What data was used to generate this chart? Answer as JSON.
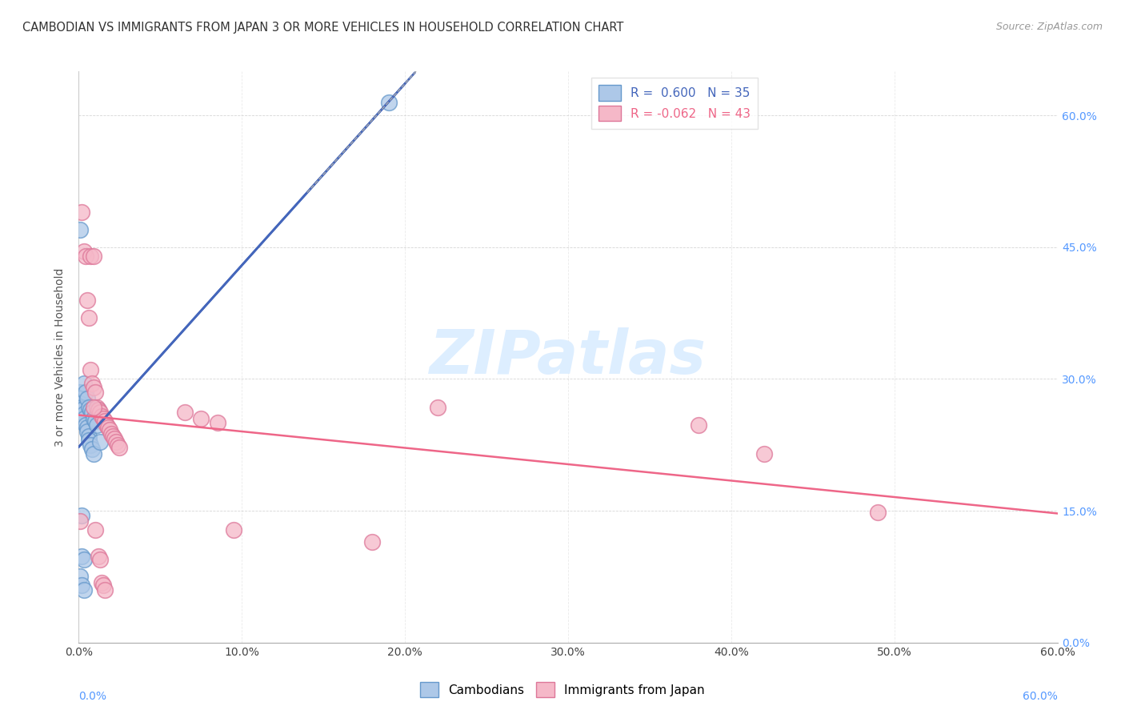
{
  "title": "CAMBODIAN VS IMMIGRANTS FROM JAPAN 3 OR MORE VEHICLES IN HOUSEHOLD CORRELATION CHART",
  "source": "Source: ZipAtlas.com",
  "ylabel": "3 or more Vehicles in Household",
  "x_min": 0.0,
  "x_max": 0.6,
  "y_min": 0.0,
  "y_max": 0.65,
  "cambodian_color": "#adc8e8",
  "cambodian_edge": "#6699cc",
  "japan_color": "#f5b8c8",
  "japan_edge": "#dd7799",
  "trendline_cambodian_color": "#4466bb",
  "trendline_japan_color": "#ee6688",
  "watermark_color": "#ddeeff",
  "right_tick_color": "#5599ff",
  "cambodian_x": [
    0.001,
    0.001,
    0.001,
    0.001,
    0.002,
    0.002,
    0.002,
    0.003,
    0.003,
    0.003,
    0.003,
    0.004,
    0.004,
    0.005,
    0.005,
    0.005,
    0.006,
    0.006,
    0.006,
    0.007,
    0.007,
    0.008,
    0.008,
    0.009,
    0.009,
    0.01,
    0.011,
    0.012,
    0.013,
    0.002,
    0.003,
    0.001,
    0.002,
    0.003,
    0.19
  ],
  "cambodian_y": [
    0.47,
    0.285,
    0.278,
    0.272,
    0.268,
    0.265,
    0.145,
    0.295,
    0.267,
    0.26,
    0.255,
    0.285,
    0.248,
    0.278,
    0.245,
    0.24,
    0.268,
    0.235,
    0.23,
    0.265,
    0.225,
    0.262,
    0.22,
    0.255,
    0.215,
    0.252,
    0.248,
    0.265,
    0.228,
    0.098,
    0.095,
    0.075,
    0.065,
    0.06,
    0.615
  ],
  "japan_x": [
    0.001,
    0.002,
    0.003,
    0.004,
    0.005,
    0.006,
    0.007,
    0.007,
    0.008,
    0.009,
    0.009,
    0.01,
    0.011,
    0.012,
    0.013,
    0.014,
    0.015,
    0.016,
    0.017,
    0.018,
    0.019,
    0.02,
    0.021,
    0.022,
    0.023,
    0.024,
    0.025,
    0.009,
    0.01,
    0.012,
    0.013,
    0.014,
    0.015,
    0.016,
    0.38,
    0.42,
    0.49,
    0.065,
    0.075,
    0.085,
    0.095,
    0.18,
    0.22
  ],
  "japan_y": [
    0.138,
    0.49,
    0.445,
    0.44,
    0.39,
    0.37,
    0.31,
    0.44,
    0.295,
    0.29,
    0.44,
    0.285,
    0.268,
    0.265,
    0.262,
    0.258,
    0.255,
    0.252,
    0.248,
    0.245,
    0.242,
    0.238,
    0.235,
    0.232,
    0.228,
    0.225,
    0.222,
    0.268,
    0.128,
    0.098,
    0.095,
    0.068,
    0.065,
    0.06,
    0.248,
    0.215,
    0.148,
    0.262,
    0.255,
    0.25,
    0.128,
    0.115,
    0.268
  ]
}
